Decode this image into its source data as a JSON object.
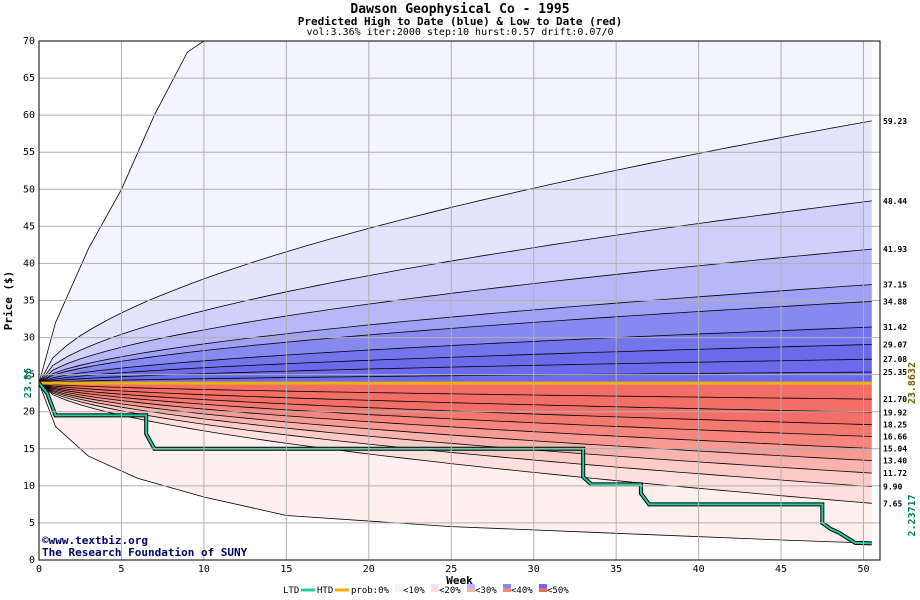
{
  "chart_data": {
    "type": "area",
    "title": "Dawson Geophysical Co - 1995",
    "subtitle": "Predicted High to Date (blue) &  Low to Date (red)",
    "params": "vol:3.36% iter:2000 step:10 hurst:0.57 drift:0.07/0",
    "xlabel": "Week",
    "ylabel": "Price ($)",
    "xlim": [
      0,
      51
    ],
    "ylim": [
      0,
      70
    ],
    "x_ticks": [
      0,
      5,
      10,
      15,
      20,
      25,
      30,
      35,
      40,
      45,
      50
    ],
    "y_ticks": [
      0,
      5,
      10,
      15,
      20,
      25,
      30,
      35,
      40,
      45,
      50,
      55,
      60,
      65,
      70
    ],
    "grid": true,
    "start_price": 23.86,
    "start_label": "23.86",
    "current_price": 23.8632,
    "current_label": "23.8632",
    "ltd_end": 2.23717,
    "ltd_end_label": "2.23717",
    "high_percentiles": [
      {
        "label": "59.23",
        "end": 59.23
      },
      {
        "label": "48.44",
        "end": 48.44
      },
      {
        "label": "41.93",
        "end": 41.93
      },
      {
        "label": "37.15",
        "end": 37.15
      },
      {
        "label": "34.88",
        "end": 34.88
      },
      {
        "label": "31.42",
        "end": 31.42
      },
      {
        "label": "29.07",
        "end": 29.07
      },
      {
        "label": "27.08",
        "end": 27.08
      },
      {
        "label": "25.35",
        "end": 25.35
      }
    ],
    "low_percentiles": [
      {
        "label": "21.70",
        "end": 21.7
      },
      {
        "label": "19.92",
        "end": 19.92
      },
      {
        "label": "18.25",
        "end": 18.25
      },
      {
        "label": "16.66",
        "end": 16.66
      },
      {
        "label": "15.04",
        "end": 15.04
      },
      {
        "label": "13.40",
        "end": 13.4
      },
      {
        "label": "11.72",
        "end": 11.72
      },
      {
        "label": "9.90",
        "end": 9.9
      },
      {
        "label": "7.65",
        "end": 7.65
      }
    ],
    "max_envelope": [
      [
        0,
        23.86
      ],
      [
        1,
        32
      ],
      [
        3,
        42
      ],
      [
        5,
        50
      ],
      [
        7,
        60
      ],
      [
        9,
        68.5
      ],
      [
        10,
        70
      ]
    ],
    "min_envelope": [
      [
        0,
        23.86
      ],
      [
        1,
        18
      ],
      [
        3,
        14
      ],
      [
        6,
        11
      ],
      [
        10,
        8.5
      ],
      [
        15,
        6
      ],
      [
        25,
        4.5
      ],
      [
        35,
        3.6
      ],
      [
        45,
        2.7
      ],
      [
        50,
        2.3
      ]
    ],
    "ltd_series": [
      [
        0,
        23.86
      ],
      [
        0.5,
        22.5
      ],
      [
        1,
        19.5
      ],
      [
        6.5,
        19.5
      ],
      [
        6.5,
        17
      ],
      [
        7,
        15
      ],
      [
        33,
        15
      ],
      [
        33,
        11.2
      ],
      [
        33.5,
        10.2
      ],
      [
        36.5,
        10.2
      ],
      [
        36.5,
        9
      ],
      [
        37,
        7.5
      ],
      [
        47.5,
        7.5
      ],
      [
        47.5,
        5
      ],
      [
        48,
        4.2
      ],
      [
        48.5,
        3.7
      ],
      [
        49,
        3
      ],
      [
        49.5,
        2.3
      ],
      [
        50.5,
        2.24
      ]
    ],
    "htd_value": 23.86,
    "legend": [
      "LTD",
      "HTD",
      "prob:0%",
      "<10%",
      "<20%",
      "<30%",
      "<40%",
      "<50%"
    ],
    "credits": [
      "www.textbiz.org",
      "The Research Foundation of SUNY"
    ],
    "credit_icon": "©"
  },
  "colors": {
    "blue_bands": [
      "#f4f4fe",
      "#e4e4fd",
      "#d0d0fb",
      "#b8b8f8",
      "#a0a0f5",
      "#8888f1",
      "#7474ed",
      "#6a6aea"
    ],
    "red_bands": [
      "#fff0ef",
      "#fde0de",
      "#fccbc8",
      "#f9b3ae",
      "#f79a94",
      "#f5857e",
      "#f37870",
      "#f26e66"
    ],
    "ltd": "#20d0a0",
    "htd": "#f0b000",
    "grid": "#b0b0b0",
    "current_label": "#7a6000",
    "ltd_label": "#008060"
  }
}
